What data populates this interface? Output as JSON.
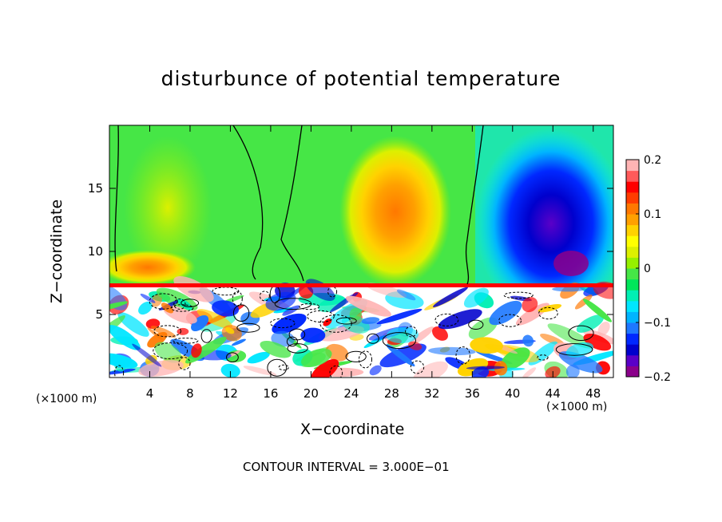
{
  "chart_data": {
    "type": "heatmap",
    "title": "disturbunce of potential temperature",
    "xlabel": "X−coordinate",
    "ylabel": "Z−coordinate",
    "x_unit_left": "(×1000 m)",
    "x_unit_right": "(×1000 m)",
    "xlim": [
      0,
      50
    ],
    "ylim": [
      0,
      20
    ],
    "x_ticks": [
      4,
      8,
      12,
      16,
      20,
      24,
      28,
      32,
      36,
      40,
      44,
      48
    ],
    "y_ticks": [
      5,
      10,
      15
    ],
    "colorbar": {
      "range": [
        -0.2,
        0.2
      ],
      "tick_values": [
        0.2,
        0.1,
        0,
        -0.1,
        -0.2
      ],
      "tick_labels": [
        "0.2",
        "0.1",
        "0",
        "−0.1",
        "−0.2"
      ],
      "colors": [
        "#8b008b",
        "#5a00c8",
        "#0000cd",
        "#0028ff",
        "#1e78ff",
        "#00b4ff",
        "#00e6ff",
        "#00f0b4",
        "#00e65a",
        "#46e646",
        "#96f000",
        "#dcf000",
        "#ffff00",
        "#ffd200",
        "#ffa000",
        "#ff7800",
        "#ff3c00",
        "#ff0000",
        "#ff5a5a",
        "#ffb4b4"
      ]
    },
    "contour_interval_label": "CONTOUR INTERVAL =  3.000E−01",
    "boundary_layer_top_z": 7.3,
    "features": [
      {
        "name": "upper-warm-plume",
        "x": 30,
        "z": 13.5,
        "value": 0.12
      },
      {
        "name": "upper-cold-core",
        "x": 44,
        "z": 11,
        "value": -0.2
      },
      {
        "name": "left-warm-band",
        "x": 6,
        "z": 8.5,
        "value": 0.1
      },
      {
        "name": "near-zero-region",
        "x": 18,
        "z": 15,
        "value": 0.02
      }
    ]
  }
}
